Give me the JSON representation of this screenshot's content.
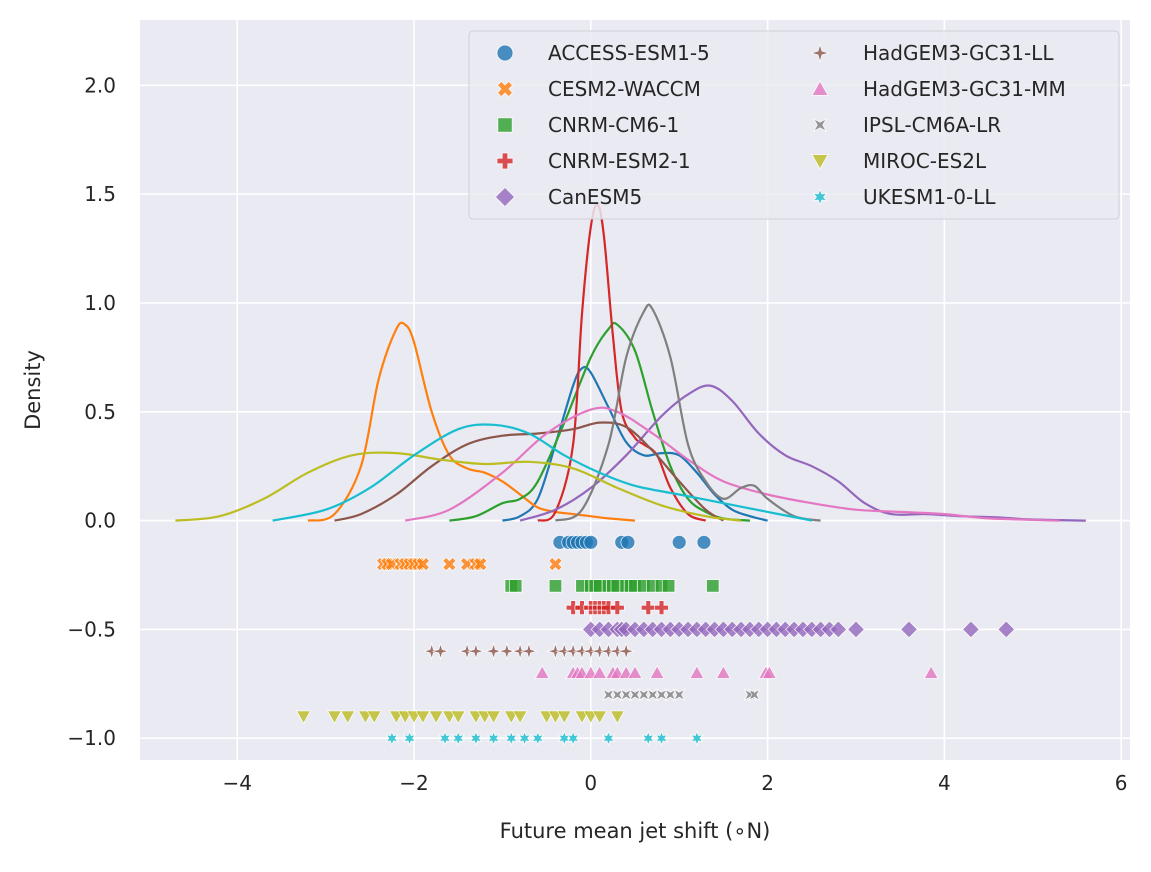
{
  "chart_data": {
    "type": "kde_strip",
    "xlabel": "Future mean jet shift (∘N)",
    "ylabel": "Density",
    "xlim": [
      -5.1,
      6.1
    ],
    "ylim": [
      -1.1,
      2.3
    ],
    "xticks": [
      -4,
      -2,
      0,
      2,
      4,
      6
    ],
    "xtick_labels": [
      "−4",
      "−2",
      "0",
      "2",
      "4",
      "6"
    ],
    "yticks": [
      -1.0,
      -0.5,
      0.0,
      0.5,
      1.0,
      1.5,
      2.0
    ],
    "ytick_labels": [
      "−1.0",
      "−0.5",
      "0.0",
      "0.5",
      "1.0",
      "1.5",
      "2.0"
    ],
    "grid": true,
    "legend_position": "upper right",
    "legend_columns": 2,
    "series": [
      {
        "name": "ACCESS-ESM1-5",
        "color": "#1f77b4",
        "marker": "circle",
        "strip_y": -0.1,
        "points": [
          -0.35,
          -0.25,
          -0.2,
          -0.15,
          -0.1,
          -0.05,
          0.0,
          0.35,
          0.42,
          1.0,
          1.28
        ],
        "kde": [
          [
            -1.0,
            0.0
          ],
          [
            -0.8,
            0.02
          ],
          [
            -0.6,
            0.1
          ],
          [
            -0.4,
            0.35
          ],
          [
            -0.2,
            0.62
          ],
          [
            -0.1,
            0.7
          ],
          [
            0.0,
            0.68
          ],
          [
            0.2,
            0.52
          ],
          [
            0.4,
            0.36
          ],
          [
            0.6,
            0.3
          ],
          [
            0.8,
            0.31
          ],
          [
            1.0,
            0.3
          ],
          [
            1.2,
            0.22
          ],
          [
            1.4,
            0.12
          ],
          [
            1.6,
            0.05
          ],
          [
            1.8,
            0.02
          ],
          [
            2.0,
            0.0
          ]
        ]
      },
      {
        "name": "CESM2-WACCM",
        "color": "#ff7f0e",
        "marker": "x",
        "strip_y": -0.2,
        "points": [
          -2.35,
          -2.3,
          -2.25,
          -2.15,
          -2.1,
          -2.05,
          -2.0,
          -1.95,
          -1.9,
          -1.6,
          -1.4,
          -1.3,
          -1.25,
          -0.4
        ],
        "kde": [
          [
            -3.2,
            0.0
          ],
          [
            -2.9,
            0.03
          ],
          [
            -2.6,
            0.25
          ],
          [
            -2.4,
            0.65
          ],
          [
            -2.2,
            0.88
          ],
          [
            -2.1,
            0.9
          ],
          [
            -2.0,
            0.82
          ],
          [
            -1.8,
            0.5
          ],
          [
            -1.6,
            0.3
          ],
          [
            -1.4,
            0.24
          ],
          [
            -1.2,
            0.22
          ],
          [
            -1.0,
            0.18
          ],
          [
            -0.8,
            0.12
          ],
          [
            -0.6,
            0.06
          ],
          [
            -0.4,
            0.04
          ],
          [
            -0.2,
            0.03
          ],
          [
            0.0,
            0.02
          ],
          [
            0.2,
            0.01
          ],
          [
            0.5,
            0.0
          ]
        ]
      },
      {
        "name": "CNRM-CM6-1",
        "color": "#2ca02c",
        "marker": "square",
        "strip_y": -0.3,
        "points": [
          -0.9,
          -0.85,
          -0.4,
          -0.1,
          0.0,
          0.05,
          0.1,
          0.2,
          0.25,
          0.3,
          0.4,
          0.45,
          0.5,
          0.6,
          0.7,
          0.8,
          0.88,
          1.38
        ],
        "kde": [
          [
            -1.6,
            0.0
          ],
          [
            -1.3,
            0.02
          ],
          [
            -1.0,
            0.08
          ],
          [
            -0.8,
            0.1
          ],
          [
            -0.6,
            0.18
          ],
          [
            -0.3,
            0.45
          ],
          [
            0.0,
            0.75
          ],
          [
            0.2,
            0.88
          ],
          [
            0.3,
            0.9
          ],
          [
            0.5,
            0.78
          ],
          [
            0.7,
            0.5
          ],
          [
            0.9,
            0.25
          ],
          [
            1.1,
            0.1
          ],
          [
            1.3,
            0.04
          ],
          [
            1.5,
            0.01
          ],
          [
            1.8,
            0.0
          ]
        ]
      },
      {
        "name": "CNRM-ESM2-1",
        "color": "#d62728",
        "marker": "plus",
        "strip_y": -0.4,
        "points": [
          -0.2,
          -0.1,
          0.0,
          0.05,
          0.1,
          0.15,
          0.2,
          0.3,
          0.65,
          0.8
        ],
        "kde": [
          [
            -0.6,
            0.0
          ],
          [
            -0.4,
            0.04
          ],
          [
            -0.2,
            0.35
          ],
          [
            -0.1,
            0.95
          ],
          [
            0.0,
            1.35
          ],
          [
            0.08,
            1.45
          ],
          [
            0.15,
            1.3
          ],
          [
            0.25,
            0.85
          ],
          [
            0.35,
            0.5
          ],
          [
            0.5,
            0.38
          ],
          [
            0.6,
            0.35
          ],
          [
            0.75,
            0.3
          ],
          [
            0.9,
            0.15
          ],
          [
            1.1,
            0.03
          ],
          [
            1.3,
            0.0
          ]
        ]
      },
      {
        "name": "CanESM5",
        "color": "#9467bd",
        "marker": "diamond",
        "strip_y": -0.5,
        "points": [
          0.0,
          0.1,
          0.2,
          0.3,
          0.35,
          0.4,
          0.5,
          0.6,
          0.7,
          0.8,
          0.9,
          1.0,
          1.1,
          1.2,
          1.3,
          1.4,
          1.5,
          1.6,
          1.7,
          1.8,
          1.9,
          2.0,
          2.1,
          2.2,
          2.3,
          2.4,
          2.5,
          2.6,
          2.7,
          2.8,
          3.0,
          3.6,
          4.3,
          4.7
        ],
        "kde": [
          [
            -0.8,
            0.0
          ],
          [
            -0.4,
            0.05
          ],
          [
            0.0,
            0.15
          ],
          [
            0.4,
            0.3
          ],
          [
            0.8,
            0.48
          ],
          [
            1.1,
            0.58
          ],
          [
            1.35,
            0.62
          ],
          [
            1.6,
            0.55
          ],
          [
            1.9,
            0.4
          ],
          [
            2.2,
            0.3
          ],
          [
            2.5,
            0.25
          ],
          [
            2.8,
            0.18
          ],
          [
            3.1,
            0.08
          ],
          [
            3.4,
            0.03
          ],
          [
            3.8,
            0.03
          ],
          [
            4.2,
            0.02
          ],
          [
            4.6,
            0.015
          ],
          [
            5.0,
            0.005
          ],
          [
            5.6,
            0.0
          ]
        ]
      },
      {
        "name": "HadGEM3-GC31-LL",
        "color": "#8c564b",
        "marker": "star4",
        "strip_y": -0.6,
        "points": [
          -1.8,
          -1.7,
          -1.4,
          -1.3,
          -1.1,
          -0.95,
          -0.8,
          -0.7,
          -0.4,
          -0.3,
          -0.2,
          -0.1,
          0.0,
          0.1,
          0.2,
          0.3,
          0.4
        ],
        "kde": [
          [
            -2.9,
            0.0
          ],
          [
            -2.6,
            0.03
          ],
          [
            -2.2,
            0.12
          ],
          [
            -1.8,
            0.25
          ],
          [
            -1.4,
            0.35
          ],
          [
            -1.0,
            0.39
          ],
          [
            -0.6,
            0.4
          ],
          [
            -0.2,
            0.42
          ],
          [
            0.1,
            0.45
          ],
          [
            0.4,
            0.43
          ],
          [
            0.7,
            0.32
          ],
          [
            1.0,
            0.18
          ],
          [
            1.3,
            0.05
          ],
          [
            1.5,
            0.0
          ]
        ]
      },
      {
        "name": "HadGEM3-GC31-MM",
        "color": "#e377c2",
        "marker": "triangle",
        "strip_y": -0.7,
        "points": [
          -0.55,
          -0.2,
          -0.15,
          -0.1,
          0.0,
          0.1,
          0.25,
          0.3,
          0.4,
          0.5,
          0.75,
          1.2,
          1.5,
          1.98,
          2.02,
          3.85
        ],
        "kde": [
          [
            -2.1,
            0.0
          ],
          [
            -1.6,
            0.05
          ],
          [
            -1.0,
            0.22
          ],
          [
            -0.5,
            0.4
          ],
          [
            0.0,
            0.51
          ],
          [
            0.3,
            0.5
          ],
          [
            0.7,
            0.4
          ],
          [
            1.1,
            0.28
          ],
          [
            1.5,
            0.18
          ],
          [
            2.0,
            0.12
          ],
          [
            2.5,
            0.08
          ],
          [
            3.0,
            0.05
          ],
          [
            3.5,
            0.04
          ],
          [
            4.0,
            0.03
          ],
          [
            4.5,
            0.01
          ],
          [
            5.3,
            0.0
          ]
        ]
      },
      {
        "name": "IPSL-CM6A-LR",
        "color": "#7f7f7f",
        "marker": "xstar",
        "strip_y": -0.8,
        "points": [
          0.2,
          0.3,
          0.4,
          0.5,
          0.6,
          0.7,
          0.8,
          0.9,
          1.0,
          1.8,
          1.85
        ],
        "kde": [
          [
            -0.4,
            0.0
          ],
          [
            -0.1,
            0.05
          ],
          [
            0.2,
            0.35
          ],
          [
            0.4,
            0.75
          ],
          [
            0.6,
            0.96
          ],
          [
            0.7,
            0.97
          ],
          [
            0.9,
            0.75
          ],
          [
            1.1,
            0.35
          ],
          [
            1.3,
            0.18
          ],
          [
            1.5,
            0.1
          ],
          [
            1.7,
            0.15
          ],
          [
            1.85,
            0.16
          ],
          [
            2.0,
            0.1
          ],
          [
            2.3,
            0.02
          ],
          [
            2.6,
            0.0
          ]
        ]
      },
      {
        "name": "MIROC-ES2L",
        "color": "#bcbd22",
        "marker": "triangle_down",
        "strip_y": -0.9,
        "points": [
          -3.25,
          -2.9,
          -2.75,
          -2.55,
          -2.45,
          -2.2,
          -2.1,
          -2.0,
          -1.9,
          -1.75,
          -1.6,
          -1.5,
          -1.3,
          -1.2,
          -1.1,
          -0.9,
          -0.8,
          -0.5,
          -0.4,
          -0.3,
          -0.1,
          0.0,
          0.1,
          0.3
        ],
        "kde": [
          [
            -4.7,
            0.0
          ],
          [
            -4.2,
            0.02
          ],
          [
            -3.7,
            0.1
          ],
          [
            -3.2,
            0.22
          ],
          [
            -2.7,
            0.3
          ],
          [
            -2.2,
            0.31
          ],
          [
            -1.7,
            0.28
          ],
          [
            -1.2,
            0.26
          ],
          [
            -0.7,
            0.27
          ],
          [
            -0.2,
            0.24
          ],
          [
            0.3,
            0.15
          ],
          [
            0.8,
            0.07
          ],
          [
            1.3,
            0.02
          ],
          [
            1.7,
            0.0
          ]
        ]
      },
      {
        "name": "UKESM1-0-LL",
        "color": "#17becf",
        "marker": "star",
        "strip_y": -1.0,
        "points": [
          -2.25,
          -2.05,
          -1.65,
          -1.5,
          -1.3,
          -1.1,
          -0.9,
          -0.75,
          -0.6,
          -0.3,
          -0.2,
          0.2,
          0.65,
          0.8,
          1.2
        ],
        "kde": [
          [
            -3.6,
            0.0
          ],
          [
            -3.0,
            0.05
          ],
          [
            -2.5,
            0.15
          ],
          [
            -2.0,
            0.3
          ],
          [
            -1.5,
            0.42
          ],
          [
            -1.1,
            0.44
          ],
          [
            -0.7,
            0.4
          ],
          [
            -0.3,
            0.3
          ],
          [
            0.1,
            0.22
          ],
          [
            0.5,
            0.16
          ],
          [
            1.0,
            0.12
          ],
          [
            1.5,
            0.08
          ],
          [
            2.0,
            0.04
          ],
          [
            2.5,
            0.0
          ]
        ]
      }
    ]
  }
}
